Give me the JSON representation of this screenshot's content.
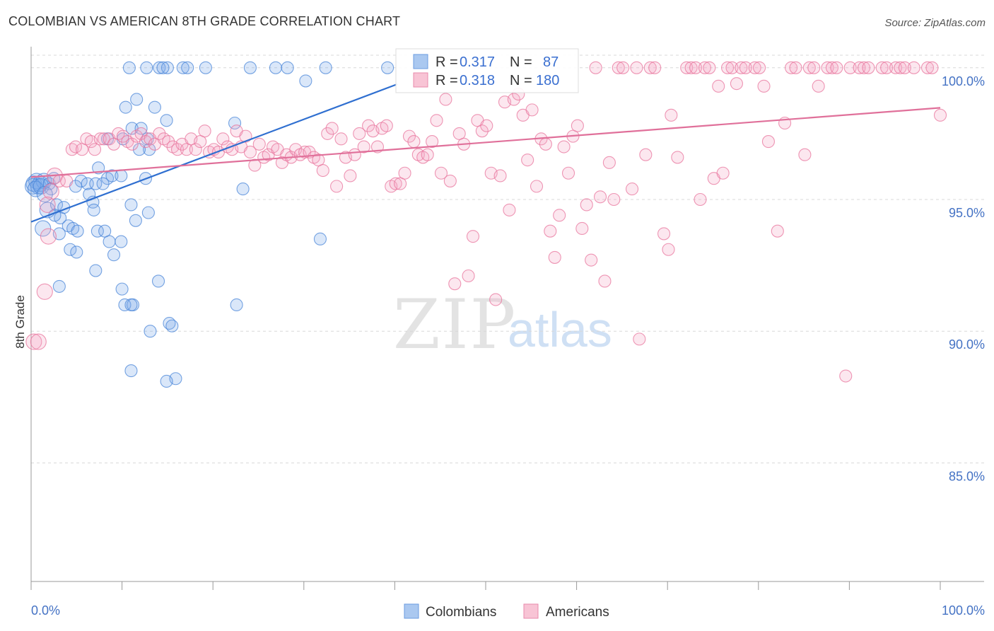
{
  "header": {
    "title": "COLOMBIAN VS AMERICAN 8TH GRADE CORRELATION CHART",
    "source": "Source: ZipAtlas.com"
  },
  "watermark": {
    "zip": "ZIP",
    "atlas": "atlas"
  },
  "colors": {
    "blue": "#4a86d8",
    "blue_fill": "rgba(123,170,235,0.28)",
    "blue_line": "#2f6fd0",
    "pink": "#e8749c",
    "pink_fill": "rgba(246,170,196,0.28)",
    "pink_line": "#e0709a",
    "grid": "#d8d8d8",
    "axis": "#999999",
    "value_text": "#3a6fd0"
  },
  "legend": {
    "rows": [
      {
        "r_label": "R = ",
        "r_value": "0.317",
        "n_label": "N = ",
        "n_value": "87",
        "series": "Colombians"
      },
      {
        "r_label": "R = ",
        "r_value": "0.318",
        "n_label": "N = ",
        "n_value": "180",
        "series": "Americans"
      }
    ]
  },
  "bottom_legend": [
    {
      "label": "Colombians"
    },
    {
      "label": "Americans"
    }
  ],
  "chart_data": {
    "type": "scatter",
    "title": "COLOMBIAN VS AMERICAN 8TH GRADE CORRELATION CHART",
    "xlabel": "",
    "ylabel": "8th Grade",
    "xlim": [
      0,
      100
    ],
    "ylim": [
      80.5,
      100.8
    ],
    "x_tick_labels": [
      "0.0%",
      "100.0%"
    ],
    "y_ticks": [
      {
        "value": 100,
        "label": "100.0%"
      },
      {
        "value": 95,
        "label": "95.0%"
      },
      {
        "value": 90,
        "label": "90.0%"
      },
      {
        "value": 85,
        "label": "85.0%"
      }
    ],
    "grid": true,
    "legend_position": "top-center",
    "series": [
      {
        "name": "Colombians",
        "r": 0.317,
        "n": 87,
        "trend": {
          "x": [
            0,
            40.3
          ],
          "y": [
            94.15,
            99.38
          ]
        },
        "points": [
          [
            0.3,
            95.6
          ],
          [
            0.6,
            95.7
          ],
          [
            0.8,
            95.5
          ],
          [
            1.0,
            95.6
          ],
          [
            1.4,
            95.7
          ],
          [
            0.2,
            95.5
          ],
          [
            0.5,
            95.4
          ],
          [
            1.1,
            95.5
          ],
          [
            2.0,
            95.6
          ],
          [
            2.5,
            95.8
          ],
          [
            2.2,
            95.4
          ],
          [
            1.5,
            95.2
          ],
          [
            1.8,
            94.6
          ],
          [
            2.8,
            94.8
          ],
          [
            3.2,
            94.3
          ],
          [
            2.6,
            94.4
          ],
          [
            3.6,
            94.7
          ],
          [
            4.1,
            94.0
          ],
          [
            4.6,
            93.9
          ],
          [
            5.1,
            93.8
          ],
          [
            1.3,
            93.9
          ],
          [
            3.1,
            93.7
          ],
          [
            4.3,
            93.1
          ],
          [
            5.0,
            93.0
          ],
          [
            5.5,
            95.7
          ],
          [
            6.2,
            95.6
          ],
          [
            4.9,
            95.5
          ],
          [
            6.4,
            95.2
          ],
          [
            7.1,
            95.6
          ],
          [
            8.4,
            95.8
          ],
          [
            7.9,
            95.6
          ],
          [
            8.9,
            95.9
          ],
          [
            9.9,
            95.9
          ],
          [
            6.8,
            94.9
          ],
          [
            6.9,
            94.6
          ],
          [
            7.3,
            93.8
          ],
          [
            8.1,
            93.8
          ],
          [
            8.6,
            93.4
          ],
          [
            9.1,
            92.9
          ],
          [
            9.9,
            93.4
          ],
          [
            11.0,
            94.8
          ],
          [
            11.5,
            94.2
          ],
          [
            12.6,
            95.8
          ],
          [
            12.9,
            94.5
          ],
          [
            7.1,
            92.3
          ],
          [
            10.0,
            91.6
          ],
          [
            10.3,
            91.0
          ],
          [
            11.2,
            91.0
          ],
          [
            11.0,
            91.0
          ],
          [
            3.1,
            91.7
          ],
          [
            14.0,
            91.9
          ],
          [
            15.2,
            90.3
          ],
          [
            15.5,
            90.2
          ],
          [
            13.1,
            90.0
          ],
          [
            15.9,
            88.2
          ],
          [
            14.9,
            88.1
          ],
          [
            11.0,
            88.5
          ],
          [
            22.6,
            91.0
          ],
          [
            23.3,
            95.4
          ],
          [
            31.8,
            93.5
          ],
          [
            11.1,
            97.7
          ],
          [
            11.6,
            98.8
          ],
          [
            10.4,
            98.5
          ],
          [
            13.6,
            98.5
          ],
          [
            14.9,
            98.0
          ],
          [
            12.1,
            97.7
          ],
          [
            10.1,
            97.3
          ],
          [
            8.4,
            97.3
          ],
          [
            12.8,
            97.3
          ],
          [
            13.0,
            96.9
          ],
          [
            11.9,
            96.9
          ],
          [
            7.4,
            96.2
          ],
          [
            22.4,
            97.9
          ],
          [
            10.8,
            100.0
          ],
          [
            12.7,
            100.0
          ],
          [
            14.1,
            100.0
          ],
          [
            15.0,
            100.0
          ],
          [
            16.7,
            100.0
          ],
          [
            17.2,
            100.0
          ],
          [
            19.2,
            100.0
          ],
          [
            24.1,
            100.0
          ],
          [
            26.9,
            100.0
          ],
          [
            28.2,
            100.0
          ],
          [
            32.4,
            100.0
          ],
          [
            39.2,
            100.0
          ],
          [
            14.5,
            100.0
          ],
          [
            30.2,
            99.5
          ]
        ]
      },
      {
        "name": "Americans",
        "r": 0.318,
        "n": 180,
        "trend": {
          "x": [
            0,
            100
          ],
          "y": [
            95.85,
            98.48
          ]
        },
        "points": [
          [
            0.3,
            89.6
          ],
          [
            0.8,
            89.6
          ],
          [
            1.5,
            91.5
          ],
          [
            1.9,
            93.6
          ],
          [
            2.2,
            95.3
          ],
          [
            1.8,
            94.8
          ],
          [
            2.6,
            95.9
          ],
          [
            3.1,
            95.7
          ],
          [
            3.9,
            95.7
          ],
          [
            4.5,
            96.9
          ],
          [
            4.9,
            97.0
          ],
          [
            5.6,
            96.9
          ],
          [
            6.1,
            97.3
          ],
          [
            6.6,
            97.2
          ],
          [
            7.0,
            96.9
          ],
          [
            7.6,
            97.3
          ],
          [
            8.0,
            97.3
          ],
          [
            8.6,
            97.3
          ],
          [
            9.1,
            97.1
          ],
          [
            9.6,
            97.5
          ],
          [
            10.1,
            97.4
          ],
          [
            10.6,
            97.2
          ],
          [
            11.1,
            97.1
          ],
          [
            11.6,
            97.4
          ],
          [
            12.1,
            97.5
          ],
          [
            12.6,
            97.2
          ],
          [
            13.1,
            97.3
          ],
          [
            13.6,
            97.1
          ],
          [
            14.1,
            97.5
          ],
          [
            14.6,
            97.3
          ],
          [
            15.1,
            97.2
          ],
          [
            15.6,
            97.0
          ],
          [
            16.1,
            96.9
          ],
          [
            16.6,
            97.1
          ],
          [
            17.1,
            96.9
          ],
          [
            17.6,
            97.3
          ],
          [
            18.1,
            96.9
          ],
          [
            18.6,
            97.2
          ],
          [
            19.1,
            97.6
          ],
          [
            19.6,
            96.8
          ],
          [
            20.1,
            96.9
          ],
          [
            20.6,
            96.8
          ],
          [
            21.1,
            97.3
          ],
          [
            21.6,
            97.0
          ],
          [
            22.1,
            96.9
          ],
          [
            22.6,
            97.6
          ],
          [
            23.1,
            97.0
          ],
          [
            23.6,
            97.4
          ],
          [
            24.1,
            96.8
          ],
          [
            24.6,
            96.3
          ],
          [
            25.1,
            97.1
          ],
          [
            25.6,
            96.6
          ],
          [
            26.1,
            96.7
          ],
          [
            26.6,
            97.0
          ],
          [
            27.1,
            96.9
          ],
          [
            27.6,
            96.4
          ],
          [
            28.1,
            96.7
          ],
          [
            28.6,
            96.6
          ],
          [
            29.1,
            96.9
          ],
          [
            29.6,
            96.7
          ],
          [
            30.1,
            96.8
          ],
          [
            30.6,
            96.8
          ],
          [
            31.1,
            96.6
          ],
          [
            31.6,
            96.5
          ],
          [
            32.1,
            96.1
          ],
          [
            32.6,
            97.5
          ],
          [
            33.1,
            97.7
          ],
          [
            33.6,
            95.5
          ],
          [
            34.1,
            97.3
          ],
          [
            34.6,
            96.6
          ],
          [
            35.1,
            95.9
          ],
          [
            35.6,
            96.7
          ],
          [
            36.1,
            97.5
          ],
          [
            36.6,
            97.0
          ],
          [
            37.1,
            97.8
          ],
          [
            37.6,
            97.6
          ],
          [
            38.1,
            97.0
          ],
          [
            38.6,
            97.7
          ],
          [
            39.1,
            97.8
          ],
          [
            39.6,
            95.5
          ],
          [
            40.1,
            95.6
          ],
          [
            40.6,
            95.6
          ],
          [
            41.1,
            96.0
          ],
          [
            41.6,
            97.4
          ],
          [
            42.1,
            97.2
          ],
          [
            42.6,
            96.7
          ],
          [
            43.1,
            96.6
          ],
          [
            43.6,
            96.7
          ],
          [
            44.1,
            97.2
          ],
          [
            44.6,
            98.0
          ],
          [
            45.1,
            96.0
          ],
          [
            45.6,
            98.8
          ],
          [
            46.1,
            95.7
          ],
          [
            46.6,
            91.8
          ],
          [
            47.1,
            97.5
          ],
          [
            47.6,
            97.1
          ],
          [
            48.1,
            92.1
          ],
          [
            48.6,
            93.6
          ],
          [
            49.1,
            98.0
          ],
          [
            49.6,
            97.6
          ],
          [
            50.1,
            97.8
          ],
          [
            50.6,
            96.0
          ],
          [
            51.1,
            91.2
          ],
          [
            51.6,
            95.9
          ],
          [
            52.1,
            98.7
          ],
          [
            52.6,
            94.6
          ],
          [
            53.1,
            98.8
          ],
          [
            53.6,
            99.0
          ],
          [
            54.1,
            98.2
          ],
          [
            54.6,
            96.5
          ],
          [
            55.1,
            98.4
          ],
          [
            55.6,
            95.5
          ],
          [
            56.1,
            97.3
          ],
          [
            56.6,
            97.1
          ],
          [
            57.1,
            93.8
          ],
          [
            57.6,
            92.8
          ],
          [
            58.1,
            94.4
          ],
          [
            58.6,
            97.0
          ],
          [
            59.1,
            96.0
          ],
          [
            59.6,
            97.4
          ],
          [
            60.1,
            97.8
          ],
          [
            60.6,
            93.9
          ],
          [
            61.1,
            94.8
          ],
          [
            61.6,
            92.7
          ],
          [
            62.1,
            100.0
          ],
          [
            62.6,
            95.1
          ],
          [
            63.1,
            91.9
          ],
          [
            63.6,
            96.4
          ],
          [
            64.1,
            95.0
          ],
          [
            64.6,
            100.0
          ],
          [
            65.1,
            100.0
          ],
          [
            66.1,
            95.4
          ],
          [
            66.6,
            100.0
          ],
          [
            66.9,
            89.7
          ],
          [
            67.6,
            96.7
          ],
          [
            68.1,
            100.0
          ],
          [
            68.6,
            100.0
          ],
          [
            69.6,
            93.7
          ],
          [
            70.1,
            93.1
          ],
          [
            70.4,
            98.2
          ],
          [
            71.1,
            96.6
          ],
          [
            72.1,
            100.0
          ],
          [
            72.6,
            100.0
          ],
          [
            73.1,
            100.0
          ],
          [
            73.6,
            95.0
          ],
          [
            74.1,
            100.0
          ],
          [
            74.6,
            100.0
          ],
          [
            75.1,
            95.8
          ],
          [
            75.6,
            99.3
          ],
          [
            76.1,
            96.0
          ],
          [
            76.6,
            100.0
          ],
          [
            77.1,
            100.0
          ],
          [
            77.6,
            99.4
          ],
          [
            78.1,
            100.0
          ],
          [
            78.6,
            100.0
          ],
          [
            79.6,
            100.0
          ],
          [
            80.1,
            100.0
          ],
          [
            80.6,
            99.3
          ],
          [
            81.1,
            97.2
          ],
          [
            82.1,
            93.8
          ],
          [
            82.9,
            97.9
          ],
          [
            83.6,
            100.0
          ],
          [
            84.1,
            100.0
          ],
          [
            85.1,
            96.7
          ],
          [
            85.6,
            100.0
          ],
          [
            86.1,
            100.0
          ],
          [
            86.6,
            99.3
          ],
          [
            87.6,
            100.0
          ],
          [
            88.1,
            100.0
          ],
          [
            88.6,
            100.0
          ],
          [
            89.6,
            88.3
          ],
          [
            90.1,
            100.0
          ],
          [
            91.1,
            100.0
          ],
          [
            91.6,
            100.0
          ],
          [
            92.1,
            100.0
          ],
          [
            93.6,
            100.0
          ],
          [
            94.1,
            100.0
          ],
          [
            95.1,
            100.0
          ],
          [
            95.6,
            100.0
          ],
          [
            96.1,
            100.0
          ],
          [
            97.1,
            100.0
          ],
          [
            98.6,
            100.0
          ],
          [
            99.1,
            100.0
          ],
          [
            100.0,
            98.2
          ]
        ]
      }
    ]
  }
}
